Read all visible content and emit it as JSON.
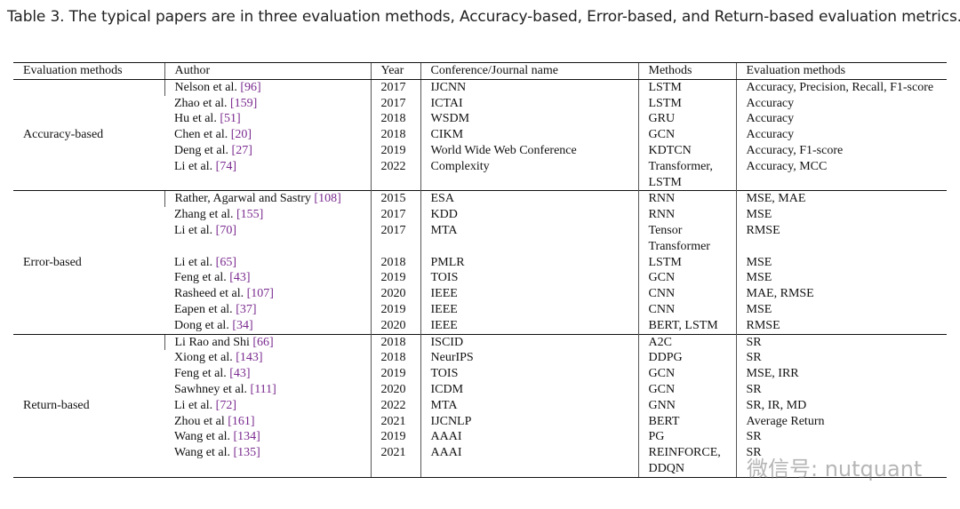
{
  "caption": "Table 3.  The typical papers are in three evaluation methods, Accuracy-based, Error-based, and Return-based evaluation metrics.",
  "table": {
    "columns": [
      "Evaluation methods",
      "Author",
      "Year",
      "Conference/Journal name",
      "Methods",
      "Evaluation methods"
    ],
    "groups": [
      {
        "name": "Accuracy-based",
        "rows": [
          {
            "author": {
              "name": "Nelson et al.",
              "ref": "[96]"
            },
            "year": 2017,
            "venue": "IJCNN",
            "methods": "LSTM",
            "metrics": "Accuracy, Precision, Recall, F1-score"
          },
          {
            "author": {
              "name": "Zhao et al.",
              "ref": "[159]"
            },
            "year": 2017,
            "venue": "ICTAI",
            "methods": "LSTM",
            "metrics": "Accuracy"
          },
          {
            "author": {
              "name": "Hu et al.",
              "ref": "[51]"
            },
            "year": 2018,
            "venue": "WSDM",
            "methods": "GRU",
            "metrics": "Accuracy"
          },
          {
            "author": {
              "name": "Chen et al.",
              "ref": "[20]"
            },
            "year": 2018,
            "venue": "CIKM",
            "methods": "GCN",
            "metrics": "Accuracy"
          },
          {
            "author": {
              "name": "Deng et al.",
              "ref": "[27]"
            },
            "year": 2019,
            "venue": "World Wide Web Conference",
            "methods": "KDTCN",
            "metrics": "Accuracy, F1-score"
          },
          {
            "author": {
              "name": "Li et al.",
              "ref": "[74]"
            },
            "year": 2022,
            "venue": "Complexity",
            "methods": "Transformer, LSTM",
            "metrics": "Accuracy, MCC"
          }
        ]
      },
      {
        "name": "Error-based",
        "rows": [
          {
            "author": {
              "name": "Rather, Agarwal and Sastry",
              "ref": "[108]"
            },
            "year": 2015,
            "venue": "ESA",
            "methods": "RNN",
            "metrics": "MSE, MAE"
          },
          {
            "author": {
              "name": "Zhang et al.",
              "ref": "[155]"
            },
            "year": 2017,
            "venue": "KDD",
            "methods": "RNN",
            "metrics": "MSE"
          },
          {
            "author": {
              "name": "Li et al.",
              "ref": "[70]"
            },
            "year": 2017,
            "venue": "MTA",
            "methods": "Tensor Transformer",
            "metrics": "RMSE"
          },
          {
            "author": {
              "name": "Li et al.",
              "ref": "[65]"
            },
            "year": 2018,
            "venue": "PMLR",
            "methods": "LSTM",
            "metrics": "MSE"
          },
          {
            "author": {
              "name": "Feng et al.",
              "ref": "[43]"
            },
            "year": 2019,
            "venue": "TOIS",
            "methods": "GCN",
            "metrics": "MSE"
          },
          {
            "author": {
              "name": "Rasheed et al.",
              "ref": "[107]"
            },
            "year": 2020,
            "venue": "IEEE",
            "methods": "CNN",
            "metrics": "MAE, RMSE"
          },
          {
            "author": {
              "name": "Eapen et al.",
              "ref": "[37]"
            },
            "year": 2019,
            "venue": "IEEE",
            "methods": "CNN",
            "metrics": "MSE"
          },
          {
            "author": {
              "name": "Dong et al.",
              "ref": "[34]"
            },
            "year": 2020,
            "venue": "IEEE",
            "methods": "BERT, LSTM",
            "metrics": "RMSE"
          }
        ]
      },
      {
        "name": "Return-based",
        "rows": [
          {
            "author": {
              "name": "Li Rao and Shi",
              "ref": "[66]"
            },
            "year": 2018,
            "venue": "ISCID",
            "methods": "A2C",
            "metrics": "SR"
          },
          {
            "author": {
              "name": "Xiong et al.",
              "ref": "[143]"
            },
            "year": 2018,
            "venue": "NeurIPS",
            "methods": "DDPG",
            "metrics": "SR"
          },
          {
            "author": {
              "name": "Feng et al.",
              "ref": "[43]"
            },
            "year": 2019,
            "venue": "TOIS",
            "methods": "GCN",
            "metrics": "MSE, IRR"
          },
          {
            "author": {
              "name": "Sawhney et al.",
              "ref": "[111]"
            },
            "year": 2020,
            "venue": "ICDM",
            "methods": "GCN",
            "metrics": "SR"
          },
          {
            "author": {
              "name": "Li et al.",
              "ref": "[72]"
            },
            "year": 2022,
            "venue": "MTA",
            "methods": "GNN",
            "metrics": "SR, IR, MD"
          },
          {
            "author": {
              "name": "Zhou et al",
              "ref": "[161]"
            },
            "year": 2021,
            "venue": "IJCNLP",
            "methods": "BERT",
            "metrics": "Average Return"
          },
          {
            "author": {
              "name": "Wang et al.",
              "ref": "[134]"
            },
            "year": 2019,
            "venue": "AAAI",
            "methods": "PG",
            "metrics": "SR"
          },
          {
            "author": {
              "name": "Wang et al.",
              "ref": "[135]"
            },
            "year": 2021,
            "venue": "AAAI",
            "methods": "REINFORCE, DDQN",
            "metrics": "SR"
          }
        ]
      }
    ]
  },
  "watermark": "微信号: nutquant"
}
